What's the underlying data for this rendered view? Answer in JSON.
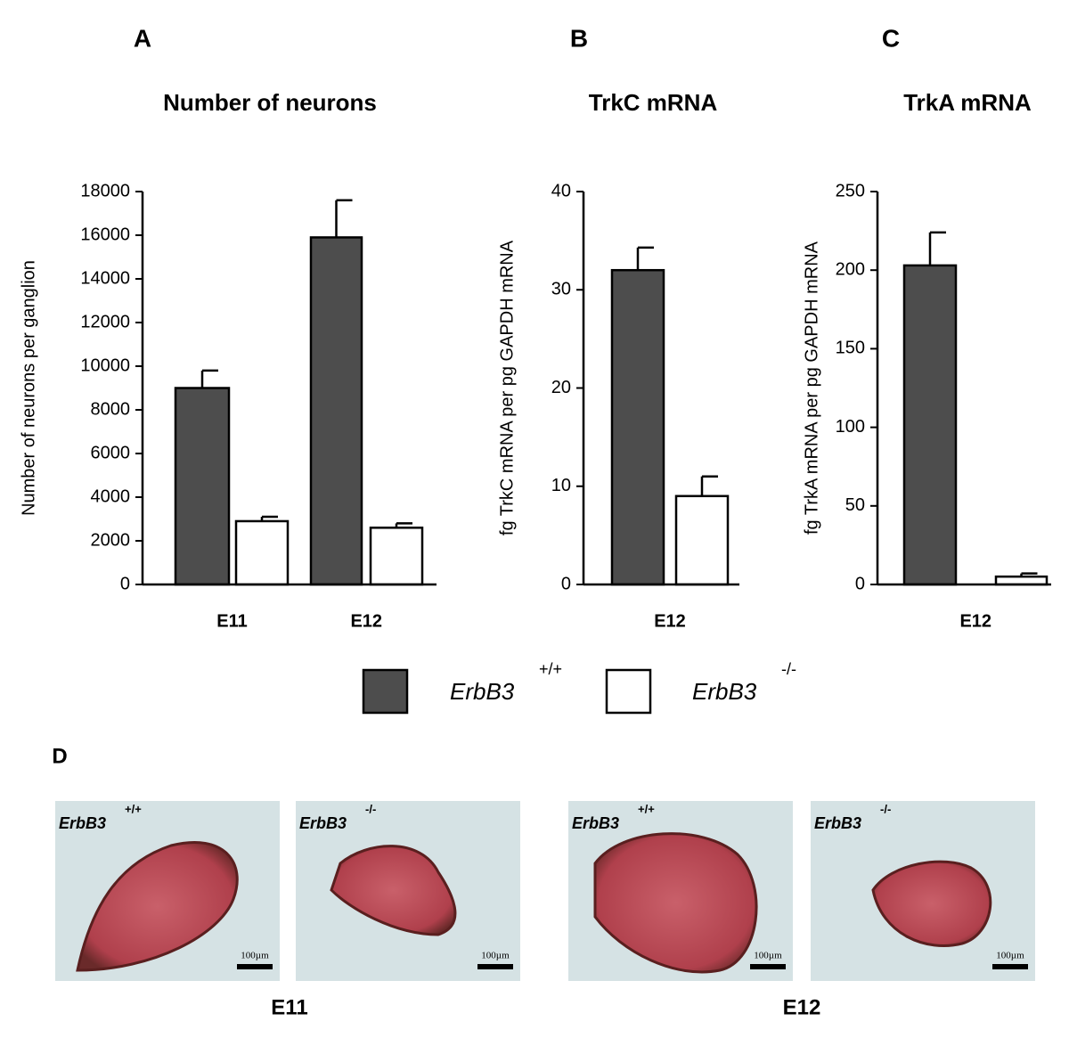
{
  "chart_data": [
    {
      "type": "bar",
      "panel": "A",
      "title": "Number of neurons",
      "y_label": "Number of neurons per ganglion",
      "categories": [
        "E11",
        "E12"
      ],
      "series": [
        {
          "name": "ErbB3",
          "superscript": "+/+",
          "color": "#4d4d4d",
          "values": [
            9000,
            15900
          ],
          "errors": [
            800,
            1700
          ]
        },
        {
          "name": "ErbB3",
          "superscript": "-/-",
          "color": "#ffffff",
          "values": [
            2900,
            2600
          ],
          "errors": [
            200,
            200
          ]
        }
      ],
      "ylim": [
        0,
        18000
      ],
      "yticks": [
        0,
        2000,
        4000,
        6000,
        8000,
        10000,
        12000,
        14000,
        16000,
        18000
      ]
    },
    {
      "type": "bar",
      "panel": "B",
      "title": "TrkC mRNA",
      "y_label": "fg TrkC mRNA per pg GAPDH mRNA",
      "categories": [
        "E12"
      ],
      "series": [
        {
          "color": "#4d4d4d",
          "values": [
            32
          ],
          "errors": [
            2.3
          ]
        },
        {
          "color": "#ffffff",
          "values": [
            9
          ],
          "errors": [
            2
          ]
        }
      ],
      "ylim": [
        0,
        40
      ],
      "yticks": [
        0,
        10,
        20,
        30,
        40
      ]
    },
    {
      "type": "bar",
      "panel": "C",
      "title": "TrkA mRNA",
      "y_label": "fg TrkA mRNA per pg GAPDH mRNA",
      "categories": [
        "E12"
      ],
      "series": [
        {
          "color": "#4d4d4d",
          "values": [
            203
          ],
          "errors": [
            21
          ]
        },
        {
          "color": "#ffffff",
          "values": [
            5
          ],
          "errors": [
            2
          ]
        }
      ],
      "ylim": [
        0,
        250
      ],
      "yticks": [
        0,
        50,
        100,
        150,
        200,
        250
      ]
    }
  ],
  "images": {
    "panel": "D",
    "groups": [
      {
        "label": "E11",
        "panels": [
          {
            "genotype": "ErbB3",
            "superscript": "+/+",
            "scale_bar": "100µm"
          },
          {
            "genotype": "ErbB3",
            "superscript": "-/-",
            "scale_bar": "100µm"
          }
        ]
      },
      {
        "label": "E12",
        "panels": [
          {
            "genotype": "ErbB3",
            "superscript": "+/+",
            "scale_bar": "100µm"
          },
          {
            "genotype": "ErbB3",
            "superscript": "-/-",
            "scale_bar": "100µm"
          }
        ]
      }
    ]
  }
}
